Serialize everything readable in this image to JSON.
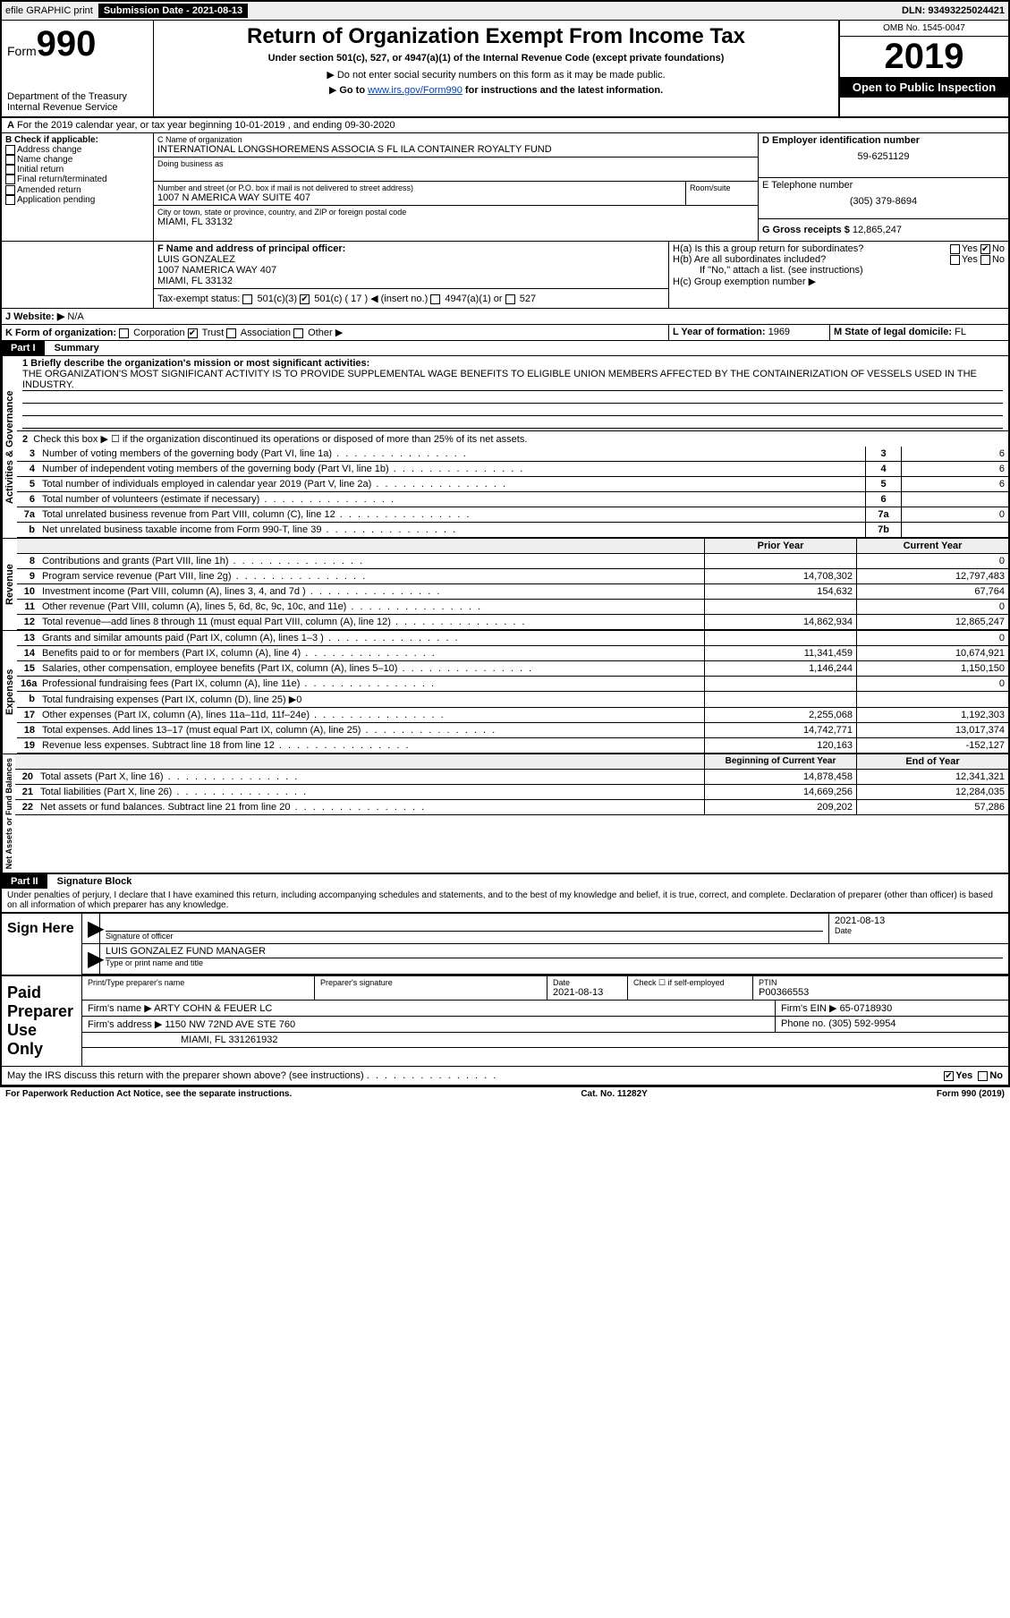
{
  "topbar": {
    "efile": "efile GRAPHIC print",
    "submission_label": "Submission Date - 2021-08-13",
    "dln": "DLN: 93493225024421"
  },
  "header": {
    "form_label": "Form",
    "form_num": "990",
    "dept": "Department of the Treasury",
    "irs": "Internal Revenue Service",
    "title": "Return of Organization Exempt From Income Tax",
    "subtitle": "Under section 501(c), 527, or 4947(a)(1) of the Internal Revenue Code (except private foundations)",
    "note1": "Do not enter social security numbers on this form as it may be made public.",
    "note2_pre": "Go to ",
    "note2_link": "www.irs.gov/Form990",
    "note2_post": " for instructions and the latest information.",
    "omb": "OMB No. 1545-0047",
    "year": "2019",
    "inspect": "Open to Public Inspection"
  },
  "lineA": "For the 2019 calendar year, or tax year beginning 10-01-2019    , and ending 09-30-2020",
  "boxB": {
    "hdr": "B Check if applicable:",
    "items": [
      "Address change",
      "Name change",
      "Initial return",
      "Final return/terminated",
      "Amended return",
      "Application pending"
    ]
  },
  "boxC": {
    "label": "C Name of organization",
    "name": "INTERNATIONAL LONGSHOREMENS ASSOCIA S FL ILA CONTAINER ROYALTY FUND",
    "dba_label": "Doing business as",
    "addr_label": "Number and street (or P.O. box if mail is not delivered to street address)",
    "room_label": "Room/suite",
    "addr": "1007 N AMERICA WAY SUITE 407",
    "city_label": "City or town, state or province, country, and ZIP or foreign postal code",
    "city": "MIAMI, FL  33132"
  },
  "boxD": {
    "label": "D Employer identification number",
    "val": "59-6251129"
  },
  "boxE": {
    "label": "E Telephone number",
    "val": "(305) 379-8694"
  },
  "boxG": {
    "label": "G Gross receipts $",
    "val": "12,865,247"
  },
  "boxF": {
    "label": "F  Name and address of principal officer:",
    "name": "LUIS GONZALEZ",
    "addr1": "1007 NAMERICA WAY 407",
    "addr2": "MIAMI, FL  33132"
  },
  "boxH": {
    "a": "H(a)  Is this a group return for subordinates?",
    "b": "H(b)  Are all subordinates included?",
    "b_note": "If \"No,\" attach a list. (see instructions)",
    "c": "H(c)  Group exemption number ▶",
    "yes": "Yes",
    "no": "No"
  },
  "taxExempt": {
    "label": "Tax-exempt status:",
    "c3": "501(c)(3)",
    "c": "501(c) ( 17 ) ◀ (insert no.)",
    "a1": "4947(a)(1) or",
    "527": "527"
  },
  "boxJ": {
    "label": "J   Website: ▶",
    "val": "N/A"
  },
  "boxK": {
    "label": "K Form of organization:",
    "opts": [
      "Corporation",
      "Trust",
      "Association",
      "Other ▶"
    ]
  },
  "boxL": {
    "label": "L Year of formation:",
    "val": "1969"
  },
  "boxM": {
    "label": "M State of legal domicile:",
    "val": "FL"
  },
  "part1": {
    "title": "Part I",
    "name": "Summary",
    "q1": "1  Briefly describe the organization's mission or most significant activities:",
    "q1_text": "THE ORGANIZATION'S MOST SIGNIFICANT ACTIVITY IS TO PROVIDE SUPPLEMENTAL WAGE BENEFITS TO ELIGIBLE UNION MEMBERS AFFECTED BY THE CONTAINERIZATION OF VESSELS USED IN THE INDUSTRY.",
    "q2": "Check this box ▶ ☐ if the organization discontinued its operations or disposed of more than 25% of its net assets.",
    "vtabs": [
      "Activities & Governance",
      "Revenue",
      "Expenses",
      "Net Assets or Fund Balances"
    ],
    "col_hdrs": [
      "Prior Year",
      "Current Year",
      "Beginning of Current Year",
      "End of Year"
    ],
    "lines_ag": [
      {
        "n": "3",
        "t": "Number of voting members of the governing body (Part VI, line 1a)",
        "box": "3",
        "v": "6"
      },
      {
        "n": "4",
        "t": "Number of independent voting members of the governing body (Part VI, line 1b)",
        "box": "4",
        "v": "6"
      },
      {
        "n": "5",
        "t": "Total number of individuals employed in calendar year 2019 (Part V, line 2a)",
        "box": "5",
        "v": "6"
      },
      {
        "n": "6",
        "t": "Total number of volunteers (estimate if necessary)",
        "box": "6",
        "v": ""
      },
      {
        "n": "7a",
        "t": "Total unrelated business revenue from Part VIII, column (C), line 12",
        "box": "7a",
        "v": "0"
      },
      {
        "n": "b",
        "t": "Net unrelated business taxable income from Form 990-T, line 39",
        "box": "7b",
        "v": ""
      }
    ],
    "lines_rev": [
      {
        "n": "8",
        "t": "Contributions and grants (Part VIII, line 1h)",
        "py": "",
        "cy": "0"
      },
      {
        "n": "9",
        "t": "Program service revenue (Part VIII, line 2g)",
        "py": "14,708,302",
        "cy": "12,797,483"
      },
      {
        "n": "10",
        "t": "Investment income (Part VIII, column (A), lines 3, 4, and 7d )",
        "py": "154,632",
        "cy": "67,764"
      },
      {
        "n": "11",
        "t": "Other revenue (Part VIII, column (A), lines 5, 6d, 8c, 9c, 10c, and 11e)",
        "py": "",
        "cy": "0"
      },
      {
        "n": "12",
        "t": "Total revenue—add lines 8 through 11 (must equal Part VIII, column (A), line 12)",
        "py": "14,862,934",
        "cy": "12,865,247"
      }
    ],
    "lines_exp": [
      {
        "n": "13",
        "t": "Grants and similar amounts paid (Part IX, column (A), lines 1–3 )",
        "py": "",
        "cy": "0"
      },
      {
        "n": "14",
        "t": "Benefits paid to or for members (Part IX, column (A), line 4)",
        "py": "11,341,459",
        "cy": "10,674,921"
      },
      {
        "n": "15",
        "t": "Salaries, other compensation, employee benefits (Part IX, column (A), lines 5–10)",
        "py": "1,146,244",
        "cy": "1,150,150"
      },
      {
        "n": "16a",
        "t": "Professional fundraising fees (Part IX, column (A), line 11e)",
        "py": "",
        "cy": "0"
      },
      {
        "n": "b",
        "t": "Total fundraising expenses (Part IX, column (D), line 25) ▶0",
        "shade": true
      },
      {
        "n": "17",
        "t": "Other expenses (Part IX, column (A), lines 11a–11d, 11f–24e)",
        "py": "2,255,068",
        "cy": "1,192,303"
      },
      {
        "n": "18",
        "t": "Total expenses. Add lines 13–17 (must equal Part IX, column (A), line 25)",
        "py": "14,742,771",
        "cy": "13,017,374"
      },
      {
        "n": "19",
        "t": "Revenue less expenses. Subtract line 18 from line 12",
        "py": "120,163",
        "cy": "-152,127"
      }
    ],
    "lines_na": [
      {
        "n": "20",
        "t": "Total assets (Part X, line 16)",
        "py": "14,878,458",
        "cy": "12,341,321"
      },
      {
        "n": "21",
        "t": "Total liabilities (Part X, line 26)",
        "py": "14,669,256",
        "cy": "12,284,035"
      },
      {
        "n": "22",
        "t": "Net assets or fund balances. Subtract line 21 from line 20",
        "py": "209,202",
        "cy": "57,286"
      }
    ]
  },
  "part2": {
    "title": "Part II",
    "name": "Signature Block",
    "decl": "Under penalties of perjury, I declare that I have examined this return, including accompanying schedules and statements, and to the best of my knowledge and belief, it is true, correct, and complete. Declaration of preparer (other than officer) is based on all information of which preparer has any knowledge."
  },
  "sign": {
    "here": "Sign Here",
    "sig_label": "Signature of officer",
    "date_label": "Date",
    "date": "2021-08-13",
    "name": "LUIS GONZALEZ  FUND MANAGER",
    "name_label": "Type or print name and title"
  },
  "preparer": {
    "label": "Paid Preparer Use Only",
    "cols": [
      "Print/Type preparer's name",
      "Preparer's signature",
      "Date",
      "",
      "PTIN"
    ],
    "date": "2021-08-13",
    "check_label": "Check ☐ if self-employed",
    "ptin": "P00366553",
    "firm_name_label": "Firm's name    ▶",
    "firm_name": "ARTY COHN & FEUER LC",
    "firm_ein_label": "Firm's EIN ▶",
    "firm_ein": "65-0718930",
    "firm_addr_label": "Firm's address ▶",
    "firm_addr1": "1150 NW 72ND AVE STE 760",
    "firm_addr2": "MIAMI, FL  331261932",
    "phone_label": "Phone no.",
    "phone": "(305) 592-9954"
  },
  "discuss": {
    "q": "May the IRS discuss this return with the preparer shown above? (see instructions)",
    "yes": "Yes",
    "no": "No"
  },
  "footer": {
    "left": "For Paperwork Reduction Act Notice, see the separate instructions.",
    "mid": "Cat. No. 11282Y",
    "right": "Form 990 (2019)"
  },
  "colors": {
    "header_bg": "#000000",
    "shade": "#d0d0d0",
    "link": "#0645ad"
  }
}
